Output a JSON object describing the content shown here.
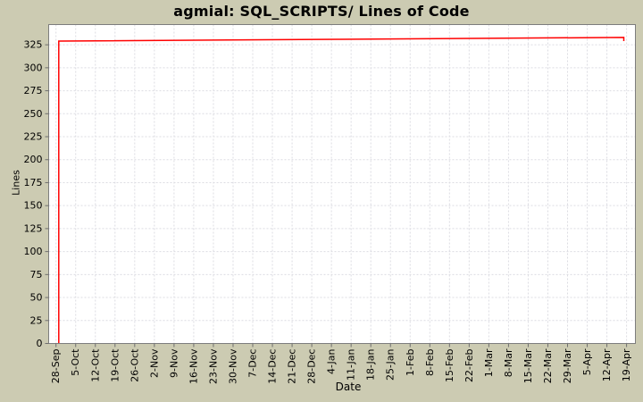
{
  "chart_data": {
    "type": "line",
    "title": "agmial: SQL_SCRIPTS/ Lines of Code",
    "xlabel": "Date",
    "ylabel": "Lines",
    "x_tick_labels": [
      "28-Sep",
      "5-Oct",
      "12-Oct",
      "19-Oct",
      "26-Oct",
      "2-Nov",
      "9-Nov",
      "16-Nov",
      "23-Nov",
      "30-Nov",
      "7-Dec",
      "14-Dec",
      "21-Dec",
      "28-Dec",
      "4-Jan",
      "11-Jan",
      "18-Jan",
      "25-Jan",
      "1-Feb",
      "8-Feb",
      "15-Feb",
      "22-Feb",
      "1-Mar",
      "8-Mar",
      "15-Mar",
      "22-Mar",
      "29-Mar",
      "5-Apr",
      "12-Apr",
      "19-Apr"
    ],
    "x_tick_interval_days": 7,
    "y_ticks": [
      0,
      25,
      50,
      75,
      100,
      125,
      150,
      175,
      200,
      225,
      250,
      275,
      300,
      325
    ],
    "ylim": [
      0,
      347
    ],
    "grid": true,
    "legend_visible": false,
    "series": [
      {
        "color": "#ff0000",
        "points": [
          {
            "day": 1,
            "lines": 0
          },
          {
            "day": 1,
            "lines": 329
          },
          {
            "day": 100,
            "lines": 331
          },
          {
            "day": 202,
            "lines": 333
          },
          {
            "day": 202,
            "lines": 329
          }
        ]
      }
    ]
  },
  "colors": {
    "background": "#cccbb2",
    "plot_background": "#ffffff",
    "gridline": "#dcdce2",
    "plot_border": "#7d7d7d",
    "tick_mark": "#6e6e6e",
    "text": "#000000",
    "series_line": "#ff0000"
  }
}
